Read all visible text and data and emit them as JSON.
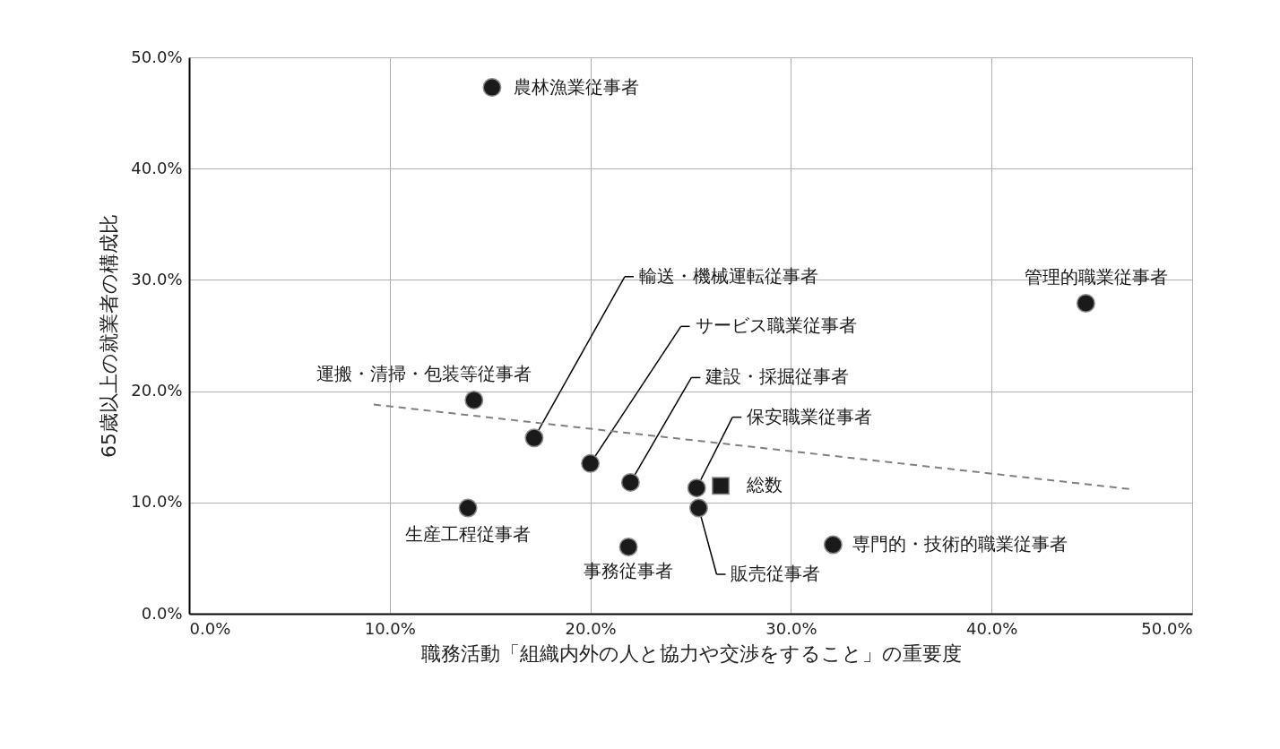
{
  "chart_data": {
    "type": "scatter",
    "xlabel": "職務活動「組織内外の人と協力や交渉をすること」の重要度",
    "ylabel": "65歳以上の就業者の構成比",
    "xlim": [
      0,
      50
    ],
    "ylim": [
      0,
      50
    ],
    "xticks": [
      {
        "value": 0,
        "label": "0.0%"
      },
      {
        "value": 10,
        "label": "10.0%"
      },
      {
        "value": 20,
        "label": "20.0%"
      },
      {
        "value": 30,
        "label": "30.0%"
      },
      {
        "value": 40,
        "label": "40.0%"
      },
      {
        "value": 50,
        "label": "50.0%"
      }
    ],
    "yticks": [
      {
        "value": 0,
        "label": "0.0%"
      },
      {
        "value": 10,
        "label": "10.0%"
      },
      {
        "value": 20,
        "label": "20.0%"
      },
      {
        "value": 30,
        "label": "30.0%"
      },
      {
        "value": 40,
        "label": "40.0%"
      },
      {
        "value": 50,
        "label": "50.0%"
      }
    ],
    "grid": true,
    "series": [
      {
        "marker": "circle",
        "color": "#1a1a1a",
        "x": [
          15.1,
          44.7,
          14.2,
          17.2,
          20.0,
          22.0,
          25.3,
          25.4,
          13.9,
          21.9,
          32.1
        ],
        "values": [
          47.3,
          27.9,
          19.2,
          15.8,
          13.5,
          11.8,
          11.3,
          9.5,
          9.5,
          6.0,
          6.2
        ]
      },
      {
        "marker": "square",
        "color": "#1a1a1a",
        "x": [
          26.5
        ],
        "values": [
          11.5
        ]
      },
      {
        "type": "line",
        "line_style": "dashed",
        "color": "#808080",
        "x": [
          9.2,
          46.9
        ],
        "values": [
          18.8,
          11.2
        ]
      }
    ],
    "annotations": [
      {
        "text": "農林漁業従事者",
        "x": 15.1,
        "y": 47.3
      },
      {
        "text": "管理的職業従事者",
        "x": 44.7,
        "y": 27.9
      },
      {
        "text": "運搬・清掃・包装等従事者",
        "x": 14.2,
        "y": 19.2
      },
      {
        "text": "輸送・機械運転従事者",
        "x": 17.2,
        "y": 15.8
      },
      {
        "text": "サービス職業従事者",
        "x": 20.0,
        "y": 13.5
      },
      {
        "text": "建設・採掘従事者",
        "x": 22.0,
        "y": 11.8
      },
      {
        "text": "保安職業従事者",
        "x": 25.3,
        "y": 11.3
      },
      {
        "text": "販売従事者",
        "x": 25.4,
        "y": 9.5
      },
      {
        "text": "生産工程従事者",
        "x": 13.9,
        "y": 9.5
      },
      {
        "text": "事務従事者",
        "x": 21.9,
        "y": 6.0
      },
      {
        "text": "専門的・技術的職業従事者",
        "x": 32.1,
        "y": 6.2
      },
      {
        "text": "総数",
        "x": 26.5,
        "y": 11.5
      }
    ]
  }
}
